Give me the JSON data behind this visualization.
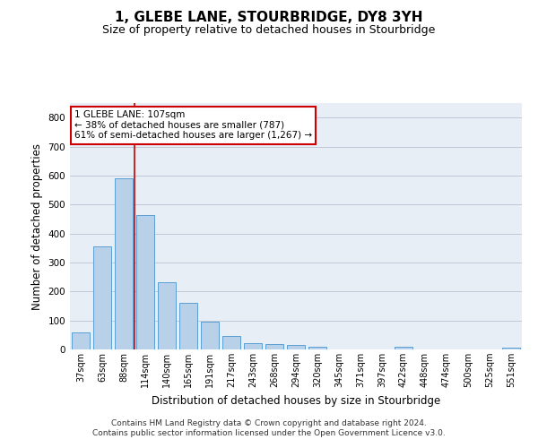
{
  "title": "1, GLEBE LANE, STOURBRIDGE, DY8 3YH",
  "subtitle": "Size of property relative to detached houses in Stourbridge",
  "xlabel": "Distribution of detached houses by size in Stourbridge",
  "ylabel": "Number of detached properties",
  "categories": [
    "37sqm",
    "63sqm",
    "88sqm",
    "114sqm",
    "140sqm",
    "165sqm",
    "191sqm",
    "217sqm",
    "243sqm",
    "268sqm",
    "294sqm",
    "320sqm",
    "345sqm",
    "371sqm",
    "397sqm",
    "422sqm",
    "448sqm",
    "474sqm",
    "500sqm",
    "525sqm",
    "551sqm"
  ],
  "values": [
    58,
    357,
    590,
    465,
    232,
    162,
    95,
    46,
    23,
    20,
    16,
    10,
    0,
    0,
    0,
    9,
    0,
    0,
    0,
    0,
    6
  ],
  "bar_color": "#b8d0e8",
  "bar_edge_color": "#5a9fd4",
  "vline_x": 2.5,
  "vline_color": "#cc0000",
  "annotation_text": "1 GLEBE LANE: 107sqm\n← 38% of detached houses are smaller (787)\n61% of semi-detached houses are larger (1,267) →",
  "annotation_box_color": "#ffffff",
  "annotation_box_edge_color": "#cc0000",
  "ylim": [
    0,
    850
  ],
  "yticks": [
    0,
    100,
    200,
    300,
    400,
    500,
    600,
    700,
    800
  ],
  "grid_color": "#c0c8d8",
  "background_color": "#e8eef5",
  "footer": "Contains HM Land Registry data © Crown copyright and database right 2024.\nContains public sector information licensed under the Open Government Licence v3.0.",
  "title_fontsize": 11,
  "subtitle_fontsize": 9,
  "xlabel_fontsize": 8.5,
  "ylabel_fontsize": 8.5,
  "footer_fontsize": 6.5,
  "tick_fontsize": 7
}
